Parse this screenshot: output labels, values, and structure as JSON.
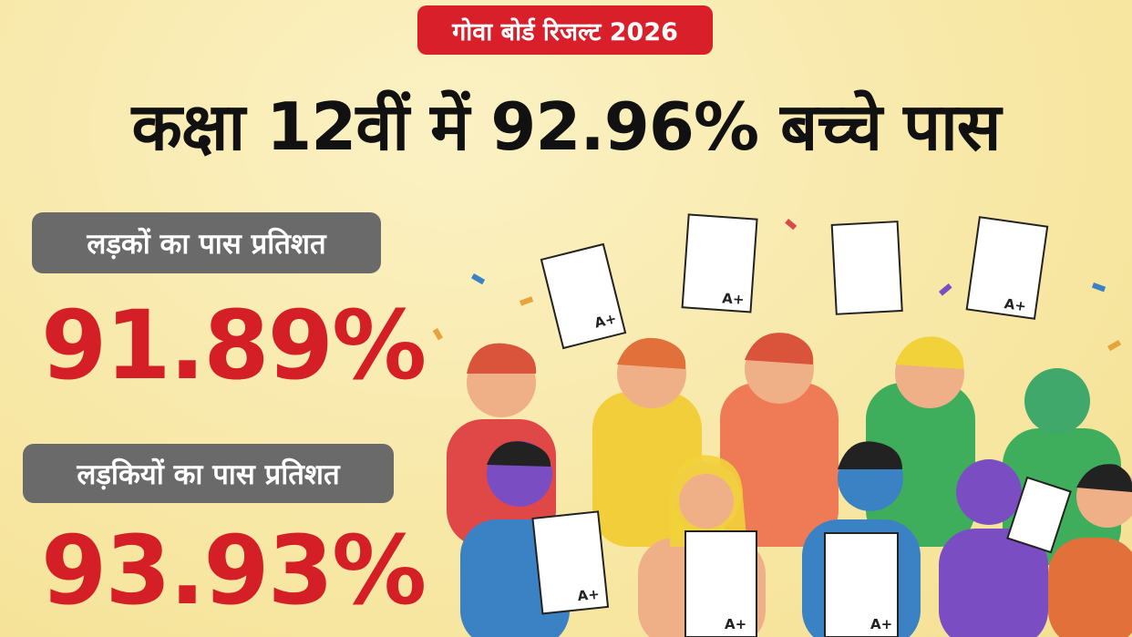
{
  "header": {
    "badge": "गोवा बोर्ड रिजल्ट 2026",
    "title": "कक्षा 12वीं में 92.96% बच्चे पास"
  },
  "stats": [
    {
      "label": "लड़कों का पास प्रतिशत",
      "value": "91.89%"
    },
    {
      "label": "लड़कियों का पास प्रतिशत",
      "value": "93.93%"
    }
  ],
  "illustration": {
    "grade": "A+"
  }
}
